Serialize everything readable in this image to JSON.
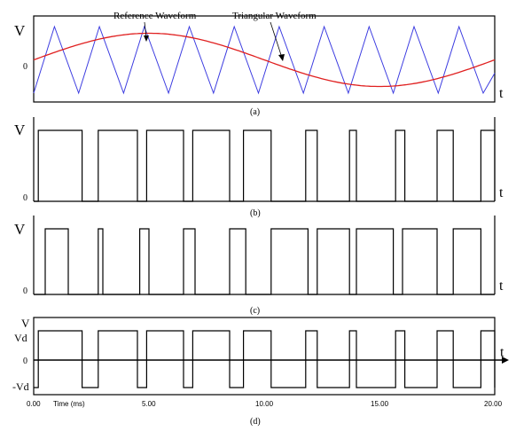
{
  "figure": {
    "panels": [
      {
        "id": "a",
        "caption": "(a)",
        "y_label": "V",
        "zero_label": "0",
        "t_label": "t",
        "annotations": [
          "Reference Waveform",
          "Triangular Waveform"
        ]
      },
      {
        "id": "b",
        "caption": "(b)",
        "y_label": "V",
        "zero_label": "0",
        "t_label": "t"
      },
      {
        "id": "c",
        "caption": "(c)",
        "y_label": "V",
        "zero_label": "0",
        "t_label": "t"
      },
      {
        "id": "d",
        "caption": "(d)",
        "y_label": "V",
        "level_labels": [
          "Vd",
          "0",
          "-Vd"
        ],
        "t_label": "t"
      }
    ],
    "time_axis": {
      "label": "Time (ms)",
      "ticks": [
        "0.00",
        "5.00",
        "10.00",
        "15.00",
        "20.00"
      ]
    },
    "colors": {
      "triangular": "#3a3ae0",
      "reference": "#e02020",
      "pulse": "#000000"
    }
  },
  "chart_data": {
    "type": "line",
    "x_unit": "ms",
    "xlim": [
      0,
      20
    ],
    "carrier": {
      "name": "Triangular Waveform",
      "amplitude": 1,
      "peaks_ms": [
        0.9,
        2.85,
        4.8,
        6.75,
        8.7,
        10.65,
        12.6,
        14.55,
        16.5,
        18.45
      ],
      "troughs_ms": [
        0,
        1.95,
        3.9,
        5.85,
        7.8,
        9.75,
        11.7,
        13.65,
        15.6,
        17.55,
        19.5
      ]
    },
    "reference": {
      "name": "Reference Waveform",
      "shape": "sine",
      "period_ms": 20,
      "amplitude": 0.8,
      "offset": 0
    },
    "pulses_b_ms": [
      [
        0.2,
        2.1
      ],
      [
        2.8,
        4.5
      ],
      [
        4.9,
        6.5
      ],
      [
        6.9,
        8.5
      ],
      [
        9.1,
        10.3
      ],
      [
        11.8,
        12.3
      ],
      [
        13.7,
        14.0
      ],
      [
        15.7,
        16.1
      ],
      [
        17.5,
        18.2
      ],
      [
        19.4,
        20.0
      ]
    ],
    "pulses_c_ms": [
      [
        0.5,
        1.5
      ],
      [
        2.8,
        3.0
      ],
      [
        4.6,
        5.0
      ],
      [
        6.5,
        7.0
      ],
      [
        8.5,
        9.2
      ],
      [
        10.3,
        11.9
      ],
      [
        12.3,
        13.7
      ],
      [
        14.0,
        15.6
      ],
      [
        16.0,
        17.5
      ],
      [
        18.2,
        19.4
      ]
    ],
    "output_d_levels": {
      "high": "Vd",
      "low": "-Vd"
    }
  }
}
